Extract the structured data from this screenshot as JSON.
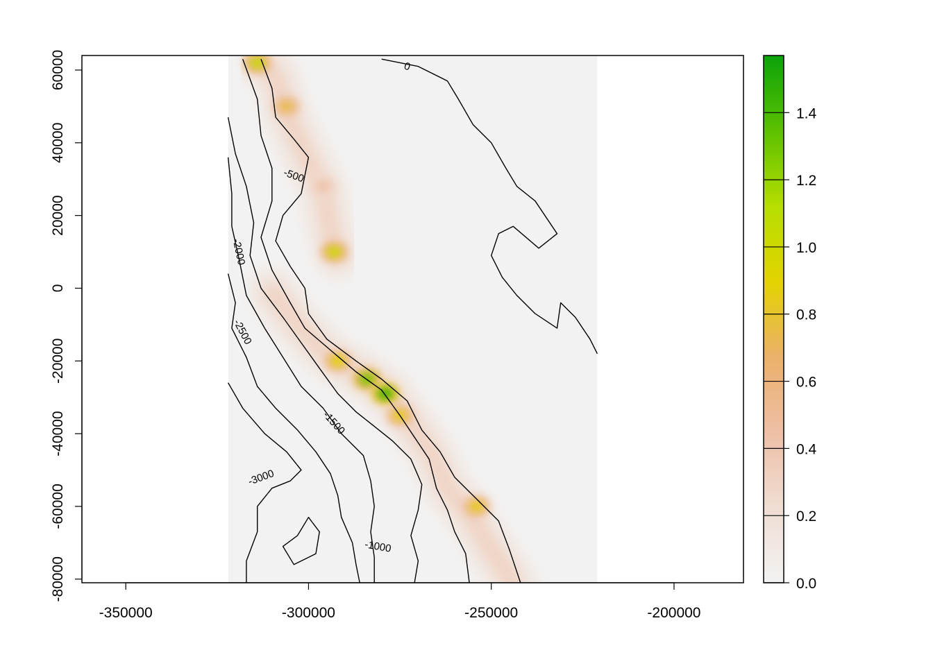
{
  "chart_data": {
    "type": "heatmap",
    "title": "",
    "xlabel": "",
    "ylabel": "",
    "xlim": [
      -362000,
      -181000
    ],
    "ylim": [
      -81000,
      64000
    ],
    "raster_extent": {
      "x": [
        -322000,
        -221000
      ],
      "y": [
        -81000,
        64000
      ]
    },
    "x_ticks": [
      {
        "value": -350000,
        "label": "-350000"
      },
      {
        "value": -300000,
        "label": "-300000"
      },
      {
        "value": -250000,
        "label": "-250000"
      },
      {
        "value": -200000,
        "label": "-200000"
      }
    ],
    "y_ticks": [
      {
        "value": -80000,
        "label": "-80000"
      },
      {
        "value": -60000,
        "label": "-60000"
      },
      {
        "value": -40000,
        "label": "-40000"
      },
      {
        "value": -20000,
        "label": "-20000"
      },
      {
        "value": 0,
        "label": "0"
      },
      {
        "value": 20000,
        "label": "20000"
      },
      {
        "value": 40000,
        "label": "40000"
      },
      {
        "value": 60000,
        "label": "60000"
      }
    ],
    "grid": false,
    "colorbar": {
      "range": [
        0,
        1.57
      ],
      "ticks": [
        {
          "value": 0.0,
          "label": "0.0"
        },
        {
          "value": 0.2,
          "label": "0.2"
        },
        {
          "value": 0.4,
          "label": "0.4"
        },
        {
          "value": 0.6,
          "label": "0.6"
        },
        {
          "value": 0.8,
          "label": "0.8"
        },
        {
          "value": 1.0,
          "label": "1.0"
        },
        {
          "value": 1.2,
          "label": "1.2"
        },
        {
          "value": 1.4,
          "label": "1.4"
        }
      ],
      "colors": [
        "#f2f2f2",
        "#f0ddd3",
        "#eebfa5",
        "#ebb06a",
        "#e3d300",
        "#b6de00",
        "#5cc100",
        "#0ba30b"
      ],
      "placement": "right"
    },
    "ridges": [
      {
        "points": [
          [
            -314000,
            63000
          ],
          [
            -309000,
            58000
          ],
          [
            -306000,
            48000
          ],
          [
            -301000,
            37000
          ],
          [
            -296000,
            27000
          ],
          [
            -294000,
            16000
          ],
          [
            -292000,
            9000
          ]
        ],
        "peaks": [
          [
            -314000,
            62000,
            1.05
          ],
          [
            -306000,
            50000,
            0.75
          ],
          [
            -296000,
            28000,
            0.45
          ],
          [
            -293000,
            10000,
            1.0
          ]
        ]
      },
      {
        "points": [
          [
            -310000,
            -1000
          ],
          [
            -303000,
            -10000
          ],
          [
            -294000,
            -19000
          ],
          [
            -285000,
            -24000
          ],
          [
            -278000,
            -29000
          ],
          [
            -273000,
            -36000
          ],
          [
            -266000,
            -46000
          ],
          [
            -262000,
            -55000
          ],
          [
            -256000,
            -62000
          ],
          [
            -250000,
            -72000
          ],
          [
            -244000,
            -81000
          ]
        ],
        "peaks": [
          [
            -292000,
            -20000,
            0.9
          ],
          [
            -284000,
            -25000,
            1.3
          ],
          [
            -279000,
            -29000,
            1.45
          ],
          [
            -275000,
            -35000,
            0.85
          ],
          [
            -254000,
            -60000,
            0.85
          ]
        ]
      }
    ],
    "contours": [
      {
        "level": 0,
        "label": "0",
        "label_at": [
          -273000,
          61000
        ],
        "points": [
          [
            -280000,
            63000
          ],
          [
            -270000,
            61000
          ],
          [
            -262000,
            57000
          ],
          [
            -259000,
            52000
          ],
          [
            -255000,
            45000
          ],
          [
            -250000,
            40000
          ],
          [
            -246000,
            33000
          ],
          [
            -243000,
            28000
          ],
          [
            -238000,
            24000
          ],
          [
            -232000,
            15000
          ],
          [
            -237000,
            11000
          ],
          [
            -244000,
            17000
          ],
          [
            -248000,
            15000
          ],
          [
            -250000,
            9000
          ],
          [
            -247000,
            3000
          ],
          [
            -243000,
            -2000
          ],
          [
            -238000,
            -7000
          ],
          [
            -232000,
            -11000
          ],
          [
            -231000,
            -4000
          ],
          [
            -227000,
            -8000
          ],
          [
            -223000,
            -14000
          ],
          [
            -221000,
            -18000
          ]
        ]
      },
      {
        "level": -500,
        "label": "-500",
        "label_at": [
          -304000,
          31000
        ],
        "points": [
          [
            -313000,
            63000
          ],
          [
            -310000,
            55000
          ],
          [
            -309000,
            47000
          ],
          [
            -304000,
            41000
          ],
          [
            -300000,
            36000
          ],
          [
            -302000,
            26000
          ],
          [
            -307000,
            20000
          ],
          [
            -309000,
            13000
          ],
          [
            -305000,
            6000
          ],
          [
            -301000,
            0
          ],
          [
            -300000,
            -7000
          ],
          [
            -295000,
            -14000
          ],
          [
            -287000,
            -20000
          ],
          [
            -280000,
            -25000
          ],
          [
            -273000,
            -31000
          ],
          [
            -269000,
            -39000
          ],
          [
            -264000,
            -45000
          ],
          [
            -260000,
            -52000
          ],
          [
            -254000,
            -58000
          ],
          [
            -248000,
            -64000
          ],
          [
            -245000,
            -72000
          ],
          [
            -242000,
            -81000
          ]
        ]
      },
      {
        "level": -1000,
        "label": "-1000",
        "label_at": [
          -281000,
          -71000
        ],
        "points": [
          [
            -318000,
            63000
          ],
          [
            -314000,
            52000
          ],
          [
            -313000,
            42000
          ],
          [
            -310000,
            33000
          ],
          [
            -310000,
            24000
          ],
          [
            -313000,
            14000
          ],
          [
            -310000,
            5000
          ],
          [
            -305000,
            -4000
          ],
          [
            -301000,
            -11000
          ],
          [
            -294000,
            -17000
          ],
          [
            -287000,
            -23000
          ],
          [
            -280000,
            -28000
          ],
          [
            -275000,
            -35000
          ],
          [
            -271000,
            -41000
          ],
          [
            -267000,
            -47000
          ],
          [
            -265000,
            -55000
          ],
          [
            -262000,
            -61000
          ],
          [
            -260000,
            -67000
          ],
          [
            -257000,
            -73000
          ],
          [
            -256000,
            -81000
          ]
        ]
      },
      {
        "level": -1500,
        "label": "-1500",
        "label_at": [
          -293000,
          -37000
        ],
        "points": [
          [
            -322000,
            47000
          ],
          [
            -320000,
            37000
          ],
          [
            -317000,
            28000
          ],
          [
            -315000,
            18000
          ],
          [
            -316000,
            9000
          ],
          [
            -313000,
            0
          ],
          [
            -307000,
            -8000
          ],
          [
            -302000,
            -15000
          ],
          [
            -297000,
            -22000
          ],
          [
            -292000,
            -29000
          ],
          [
            -287000,
            -34000
          ],
          [
            -282000,
            -38000
          ],
          [
            -277000,
            -42000
          ],
          [
            -272000,
            -47000
          ],
          [
            -269000,
            -54000
          ],
          [
            -270000,
            -61000
          ],
          [
            -272000,
            -68000
          ],
          [
            -270000,
            -75000
          ],
          [
            -271000,
            -81000
          ]
        ]
      },
      {
        "level": -2000,
        "label": "-2000",
        "label_at": [
          -319000,
          10000
        ],
        "points": [
          [
            -322000,
            36000
          ],
          [
            -321000,
            26000
          ],
          [
            -321000,
            17000
          ],
          [
            -319000,
            8000
          ],
          [
            -317000,
            -2000
          ],
          [
            -312000,
            -11000
          ],
          [
            -307000,
            -19000
          ],
          [
            -302000,
            -27000
          ],
          [
            -296000,
            -33000
          ],
          [
            -291000,
            -40000
          ],
          [
            -285000,
            -46000
          ],
          [
            -283000,
            -53000
          ],
          [
            -282000,
            -60000
          ],
          [
            -283000,
            -67000
          ],
          [
            -282000,
            -74000
          ],
          [
            -282000,
            -81000
          ]
        ]
      },
      {
        "level": -2500,
        "label": "-2500",
        "label_at": [
          -318000,
          -12000
        ],
        "points": [
          [
            -322000,
            4000
          ],
          [
            -320000,
            -4000
          ],
          [
            -321000,
            -11000
          ],
          [
            -317000,
            -19000
          ],
          [
            -314000,
            -27000
          ],
          [
            -309000,
            -33000
          ],
          [
            -303000,
            -39000
          ],
          [
            -298000,
            -45000
          ],
          [
            -294000,
            -51000
          ],
          [
            -292000,
            -57000
          ],
          [
            -291000,
            -63000
          ],
          [
            -288000,
            -70000
          ],
          [
            -287000,
            -76000
          ],
          [
            -286000,
            -81000
          ]
        ]
      },
      {
        "level": -3000,
        "label": "-3000",
        "label_at": [
          -313000,
          -52000
        ],
        "points": [
          [
            -322000,
            -26000
          ],
          [
            -318000,
            -33000
          ],
          [
            -312000,
            -40000
          ],
          [
            -306000,
            -45000
          ],
          [
            -302000,
            -50000
          ],
          [
            -305000,
            -53000
          ],
          [
            -310000,
            -55000
          ],
          [
            -314000,
            -60000
          ],
          [
            -314000,
            -67000
          ],
          [
            -317000,
            -75000
          ],
          [
            -317000,
            -81000
          ]
        ]
      },
      {
        "level": -3500,
        "label": "",
        "label_at": null,
        "points": [
          [
            -303000,
            -68000
          ],
          [
            -300000,
            -63000
          ],
          [
            -297000,
            -67000
          ],
          [
            -298000,
            -73000
          ],
          [
            -304000,
            -76000
          ],
          [
            -307000,
            -71000
          ],
          [
            -303000,
            -68000
          ]
        ]
      }
    ]
  }
}
